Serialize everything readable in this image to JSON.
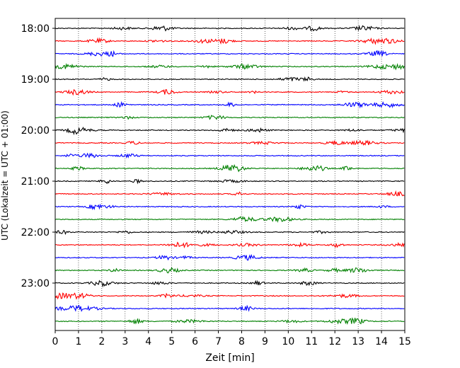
{
  "chart_data": {
    "type": "line",
    "title": "",
    "xlabel": "Zeit  [min]",
    "ylabel": "UTC (Lokalzeit = UTC + 01:00)",
    "xlim": [
      0,
      15
    ],
    "x_ticks": [
      "0",
      "1",
      "2",
      "3",
      "4",
      "5",
      "6",
      "7",
      "8",
      "9",
      "10",
      "11",
      "12",
      "13",
      "14",
      "15"
    ],
    "y_tick_labels": [
      "18:00",
      "19:00",
      "20:00",
      "21:00",
      "22:00",
      "23:00"
    ],
    "row_start": "18:00",
    "row_end": "23:45",
    "row_step_min": 15,
    "row_count": 24,
    "row_colors": [
      "#000000",
      "#ff0000",
      "#0000ff",
      "#008000"
    ],
    "grid": "vertical dotted lines at each minute"
  }
}
